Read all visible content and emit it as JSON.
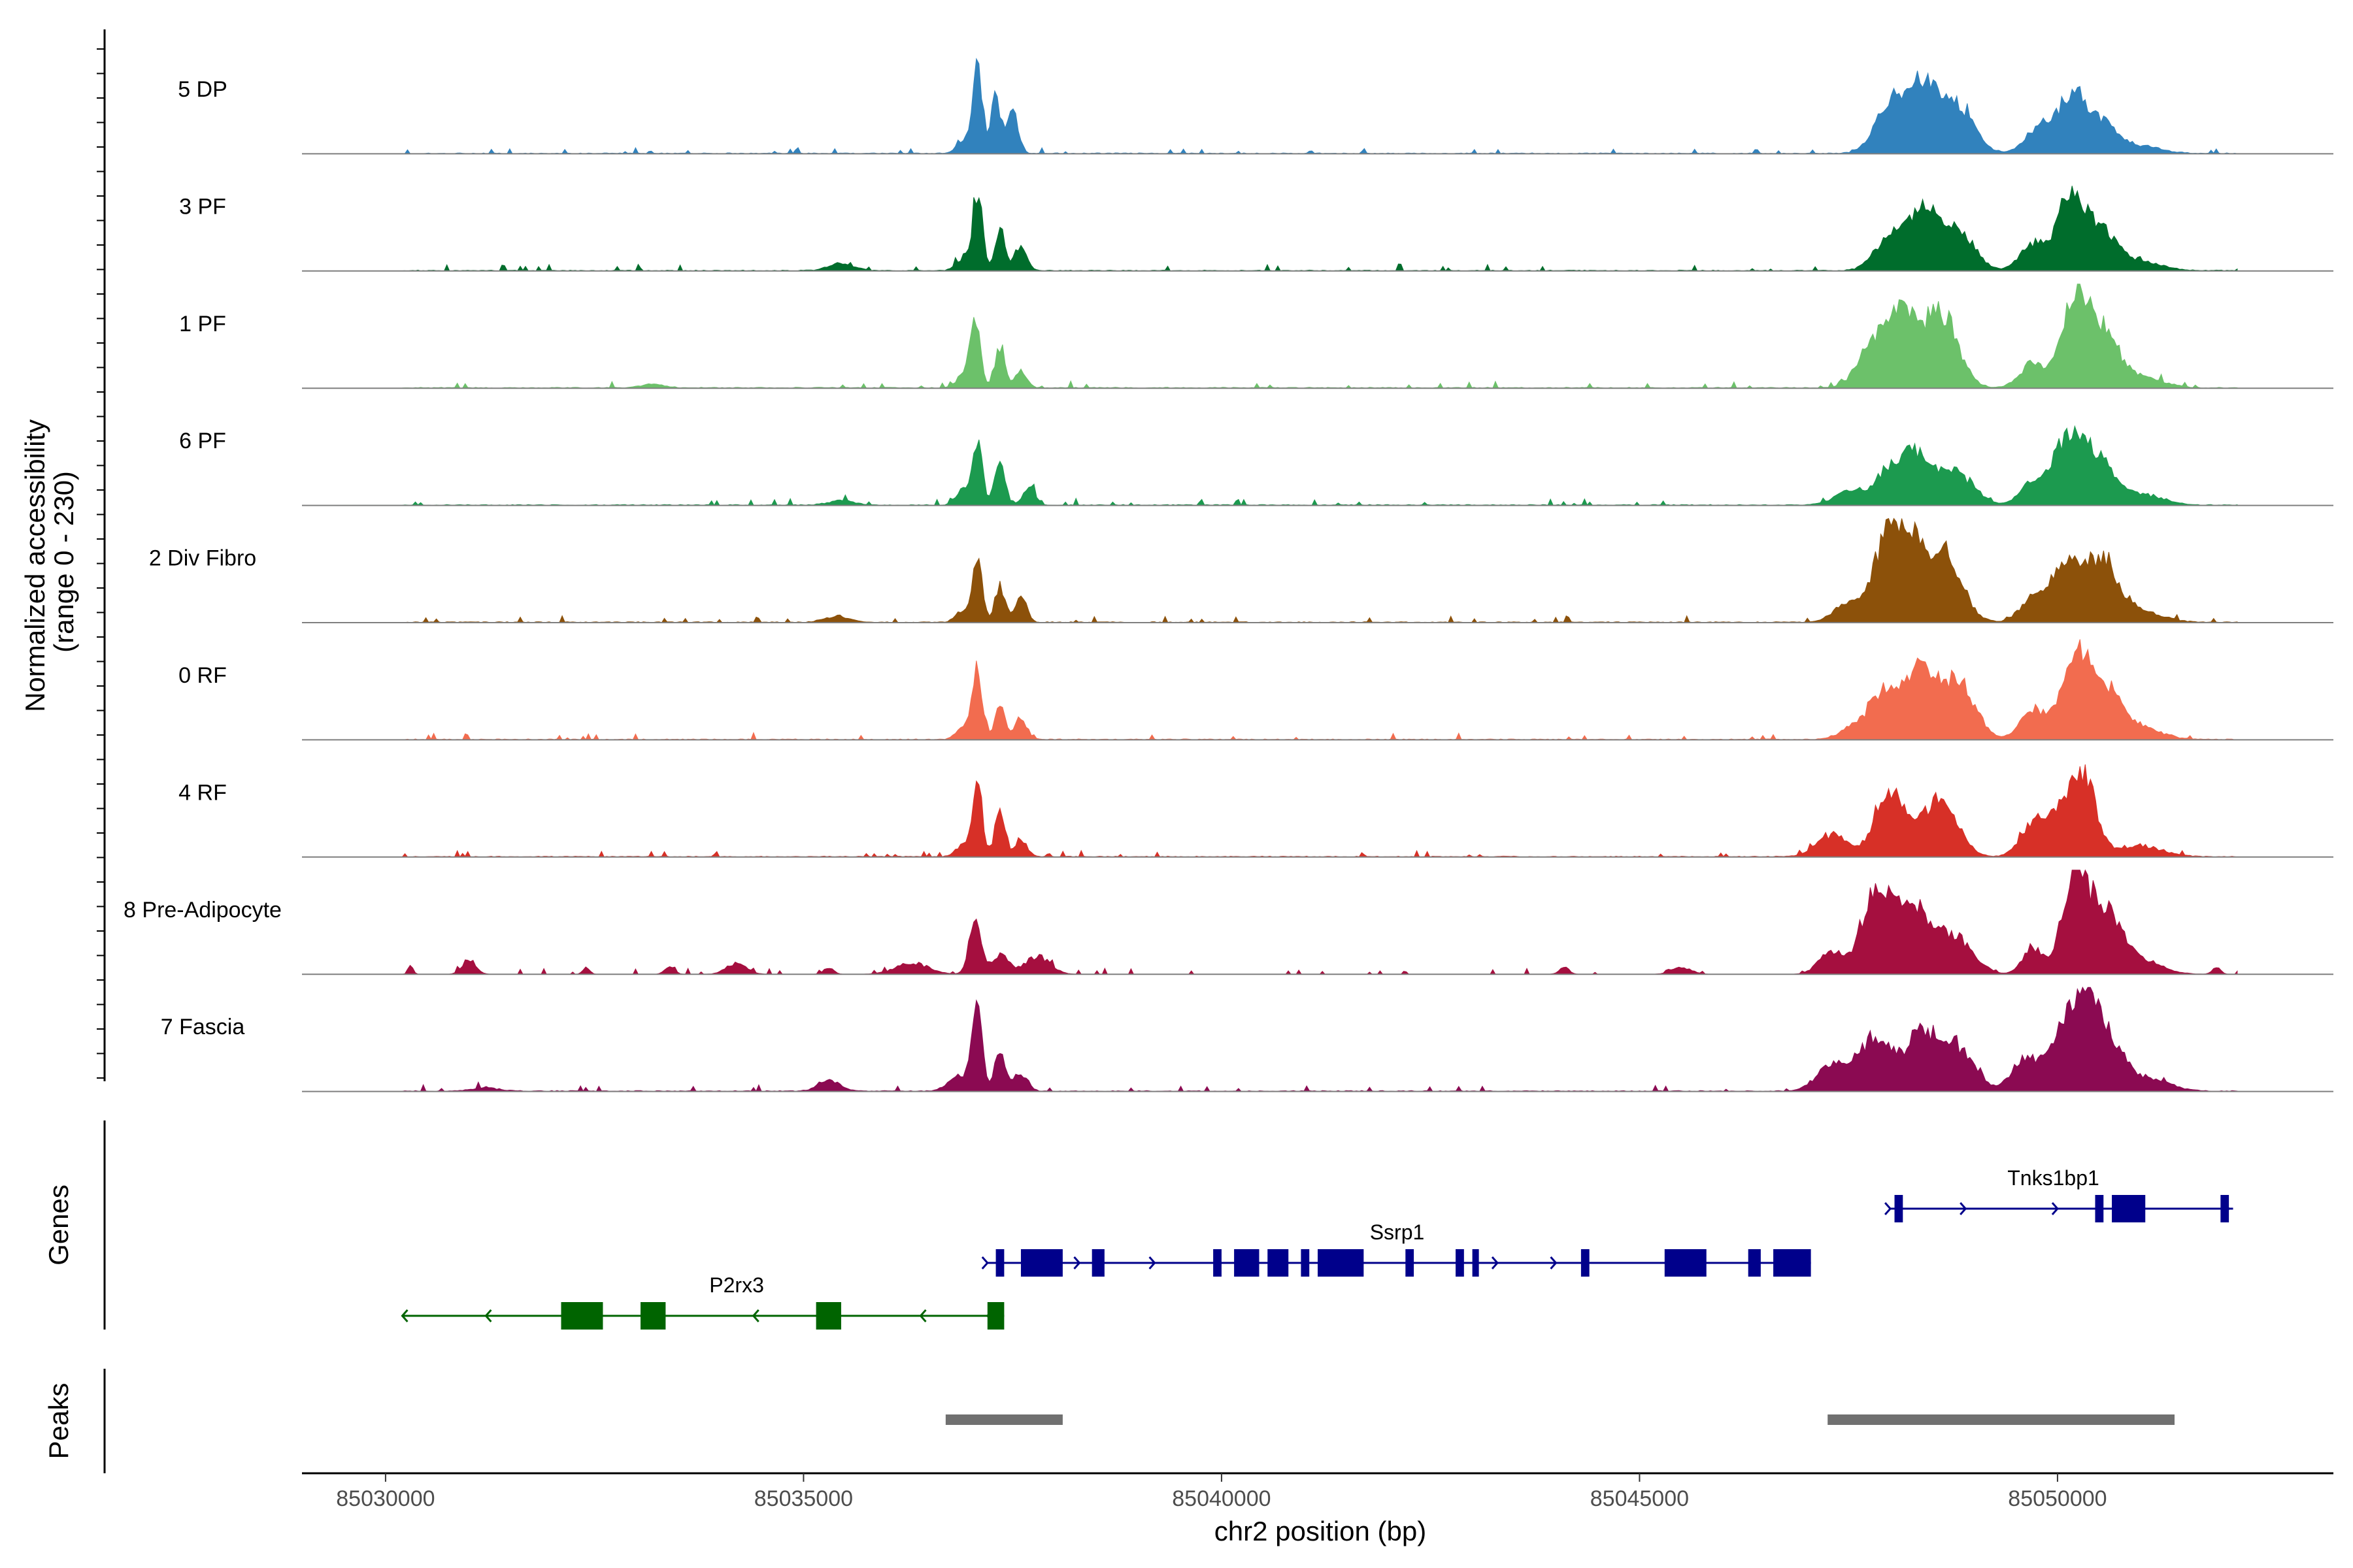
{
  "chart_data": {
    "type": "area",
    "title": "",
    "ylabel": "Normalized accessibility\n(range 0 - 230)",
    "ylabel_lines": [
      "Normalized accessibility",
      "(range 0 - 230)"
    ],
    "xlabel": "chr2 position (bp)",
    "xlim": [
      85029000,
      85053300
    ],
    "ylim": [
      0,
      230
    ],
    "x_ticks": [
      85030000,
      85035000,
      85040000,
      85045000,
      85050000
    ],
    "x_tick_labels": [
      "85030000",
      "85035000",
      "85040000",
      "85045000",
      "85050000"
    ],
    "series": [
      {
        "name": "5 DP",
        "color": "#3182bd",
        "baseline": 2,
        "noise_seed": 11,
        "peaks": [
          [
            85037080,
            60,
            200
          ],
          [
            85037300,
            55,
            130
          ],
          [
            85037500,
            70,
            90
          ],
          [
            85036900,
            80,
            25
          ],
          [
            85048000,
            180,
            120
          ],
          [
            85048400,
            170,
            145
          ],
          [
            85048800,
            200,
            105
          ],
          [
            85049750,
            150,
            55
          ],
          [
            85050150,
            160,
            125
          ],
          [
            85050500,
            200,
            70
          ],
          [
            85051000,
            250,
            15
          ]
        ]
      },
      {
        "name": "3 PF",
        "color": "#006d2c",
        "baseline": 2,
        "noise_seed": 23,
        "peaks": [
          [
            85037080,
            60,
            180
          ],
          [
            85037350,
            60,
            95
          ],
          [
            85037600,
            70,
            60
          ],
          [
            85035450,
            150,
            16
          ],
          [
            85036900,
            80,
            25
          ],
          [
            85048000,
            180,
            75
          ],
          [
            85048400,
            170,
            135
          ],
          [
            85048800,
            200,
            90
          ],
          [
            85049700,
            150,
            60
          ],
          [
            85050150,
            160,
            160
          ],
          [
            85050500,
            200,
            90
          ],
          [
            85051000,
            250,
            20
          ]
        ]
      },
      {
        "name": "1 PF",
        "color": "#6cc16a",
        "baseline": 2,
        "noise_seed": 37,
        "peaks": [
          [
            85037050,
            60,
            165
          ],
          [
            85037350,
            60,
            95
          ],
          [
            85037600,
            70,
            40
          ],
          [
            85033200,
            150,
            8
          ],
          [
            85036900,
            80,
            25
          ],
          [
            85047800,
            180,
            100
          ],
          [
            85048150,
            170,
            150
          ],
          [
            85048600,
            200,
            170
          ],
          [
            85049700,
            150,
            55
          ],
          [
            85050200,
            160,
            170
          ],
          [
            85050500,
            200,
            125
          ],
          [
            85051000,
            250,
            25
          ]
        ]
      },
      {
        "name": "6 PF",
        "color": "#1c9a4f",
        "baseline": 2,
        "noise_seed": 41,
        "peaks": [
          [
            85037080,
            60,
            140
          ],
          [
            85037350,
            60,
            110
          ],
          [
            85037700,
            70,
            45
          ],
          [
            85035450,
            150,
            10
          ],
          [
            85036900,
            80,
            35
          ],
          [
            85047500,
            180,
            30
          ],
          [
            85048000,
            180,
            80
          ],
          [
            85048350,
            170,
            110
          ],
          [
            85048800,
            200,
            70
          ],
          [
            85049700,
            150,
            50
          ],
          [
            85050100,
            160,
            135
          ],
          [
            85050450,
            200,
            110
          ],
          [
            85051000,
            250,
            25
          ]
        ]
      },
      {
        "name": "2 Div Fibro",
        "color": "#8c510a",
        "baseline": 2,
        "noise_seed": 53,
        "peaks": [
          [
            85037080,
            60,
            150
          ],
          [
            85037350,
            60,
            85
          ],
          [
            85037600,
            70,
            55
          ],
          [
            85035400,
            150,
            14
          ],
          [
            85036900,
            80,
            25
          ],
          [
            85047500,
            180,
            40
          ],
          [
            85047950,
            160,
            175
          ],
          [
            85048250,
            150,
            165
          ],
          [
            85048650,
            200,
            155
          ],
          [
            85049700,
            150,
            55
          ],
          [
            85050100,
            160,
            125
          ],
          [
            85050500,
            200,
            140
          ],
          [
            85051000,
            250,
            25
          ]
        ]
      },
      {
        "name": "0 RF",
        "color": "#f26c4f",
        "baseline": 2,
        "noise_seed": 67,
        "peaks": [
          [
            85037080,
            60,
            160
          ],
          [
            85037350,
            60,
            85
          ],
          [
            85037600,
            70,
            50
          ],
          [
            85036900,
            80,
            25
          ],
          [
            85047600,
            180,
            30
          ],
          [
            85047950,
            170,
            105
          ],
          [
            85048350,
            170,
            150
          ],
          [
            85048800,
            200,
            135
          ],
          [
            85049700,
            150,
            70
          ],
          [
            85050200,
            160,
            180
          ],
          [
            85050550,
            200,
            115
          ],
          [
            85051000,
            250,
            25
          ]
        ]
      },
      {
        "name": "4 RF",
        "color": "#d73027",
        "baseline": 2,
        "noise_seed": 79,
        "peaks": [
          [
            85037080,
            60,
            160
          ],
          [
            85037350,
            60,
            110
          ],
          [
            85037600,
            70,
            40
          ],
          [
            85036900,
            80,
            25
          ],
          [
            85047300,
            180,
            50
          ],
          [
            85048000,
            180,
            150
          ],
          [
            85048600,
            200,
            140
          ],
          [
            85049700,
            150,
            70
          ],
          [
            85050000,
            160,
            70
          ],
          [
            85050300,
            160,
            180
          ],
          [
            85051000,
            250,
            25
          ]
        ]
      },
      {
        "name": "8 Pre-Adipocyte",
        "color": "#a50f3f",
        "baseline": 0,
        "noise_seed": 83,
        "peaks": [
          [
            85037050,
            70,
            120
          ],
          [
            85037350,
            100,
            45
          ],
          [
            85037800,
            150,
            40
          ],
          [
            85030300,
            30,
            18
          ],
          [
            85031000,
            80,
            35
          ],
          [
            85032400,
            40,
            15
          ],
          [
            85033400,
            60,
            15
          ],
          [
            85034200,
            120,
            25
          ],
          [
            85035300,
            60,
            15
          ],
          [
            85036300,
            200,
            25
          ],
          [
            85044100,
            60,
            15
          ],
          [
            85045500,
            120,
            15
          ],
          [
            85047300,
            150,
            50
          ],
          [
            85047850,
            180,
            190
          ],
          [
            85048300,
            200,
            150
          ],
          [
            85048800,
            200,
            80
          ],
          [
            85049700,
            120,
            60
          ],
          [
            85050200,
            150,
            210
          ],
          [
            85050550,
            200,
            140
          ],
          [
            85051000,
            250,
            30
          ],
          [
            85051900,
            50,
            15
          ]
        ]
      },
      {
        "name": "7 Fascia",
        "color": "#8b0a52",
        "baseline": 2,
        "noise_seed": 97,
        "peaks": [
          [
            85037080,
            60,
            170
          ],
          [
            85037350,
            60,
            100
          ],
          [
            85037600,
            80,
            40
          ],
          [
            85031200,
            150,
            8
          ],
          [
            85035300,
            120,
            28
          ],
          [
            85036900,
            150,
            35
          ],
          [
            85047300,
            180,
            60
          ],
          [
            85047800,
            180,
            120
          ],
          [
            85048350,
            200,
            125
          ],
          [
            85048800,
            200,
            95
          ],
          [
            85049600,
            150,
            70
          ],
          [
            85050000,
            150,
            95
          ],
          [
            85050300,
            160,
            190
          ],
          [
            85050600,
            200,
            110
          ],
          [
            85051100,
            250,
            25
          ]
        ]
      }
    ],
    "genes": [
      {
        "name": "Tnks1bp1",
        "strand": "+",
        "color": "#00008b",
        "start": 85048000,
        "end": 85052100,
        "row": 0,
        "exons": [
          [
            85048050,
            85048150
          ],
          [
            85050450,
            85050550
          ],
          [
            85050650,
            85051050
          ],
          [
            85051950,
            85052050
          ]
        ],
        "arrows": [
          85048000,
          85048900,
          85050000,
          85052050
        ]
      },
      {
        "name": "Ssrp1",
        "strand": "+",
        "color": "#00008b",
        "start": 85037200,
        "end": 85047050,
        "row": 1,
        "exons": [
          [
            85037300,
            85037400
          ],
          [
            85037600,
            85038100
          ],
          [
            85038450,
            85038600
          ],
          [
            85039900,
            85040000
          ],
          [
            85040150,
            85040450
          ],
          [
            85040550,
            85040800
          ],
          [
            85040950,
            85041050
          ],
          [
            85041150,
            85041700
          ],
          [
            85042200,
            85042300
          ],
          [
            85042800,
            85042900
          ],
          [
            85043000,
            85043050
          ],
          [
            85044300,
            85044400
          ],
          [
            85045300,
            85045800
          ],
          [
            85046300,
            85046450
          ],
          [
            85046600,
            85047050
          ]
        ],
        "arrows": [
          85037200,
          85038300,
          85039200,
          85043300,
          85044000
        ]
      },
      {
        "name": "P2rx3",
        "strand": "-",
        "color": "#006400",
        "start": 85030200,
        "end": 85037400,
        "row": 2,
        "exons": [
          [
            85032100,
            85032600
          ],
          [
            85033050,
            85033350
          ],
          [
            85035150,
            85035450
          ],
          [
            85037200,
            85037400
          ]
        ],
        "arrows": [
          85030200,
          85031200,
          85034400,
          85036400,
          85037200
        ]
      }
    ],
    "peaks": [
      {
        "start": 85036700,
        "end": 85038100
      },
      {
        "start": 85047250,
        "end": 85051400
      }
    ],
    "panel_labels": {
      "genes": "Genes",
      "peaks": "Peaks"
    }
  }
}
